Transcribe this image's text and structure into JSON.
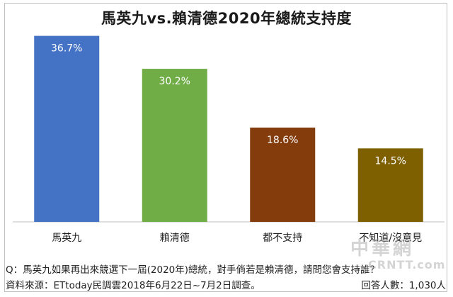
{
  "chart_data": {
    "type": "bar",
    "title": "馬英九vs.賴清德2020年總統支持度",
    "categories": [
      "馬英九",
      "賴清德",
      "都不支持",
      "不知道/沒意見"
    ],
    "values": [
      36.7,
      30.2,
      18.6,
      14.5
    ],
    "value_labels": [
      "36.7%",
      "30.2%",
      "18.6%",
      "14.5%"
    ],
    "colors": [
      "#4472C4",
      "#70AD47",
      "#843C0C",
      "#7F6000"
    ],
    "ylim": [
      0,
      40
    ],
    "grid": false,
    "legend": "none"
  },
  "footer": {
    "question": "Q：馬英九如果再出來競選下一屆(2020年)總統，對手倘若是賴清德，請問您會支持誰？",
    "source": "資料來源：ETtoday民調雲2018年6月22日~7月2日調查。",
    "respondents": "回答人數：1,030人"
  },
  "watermark": {
    "text": "中華網",
    "sub": "CRNTT.com"
  }
}
